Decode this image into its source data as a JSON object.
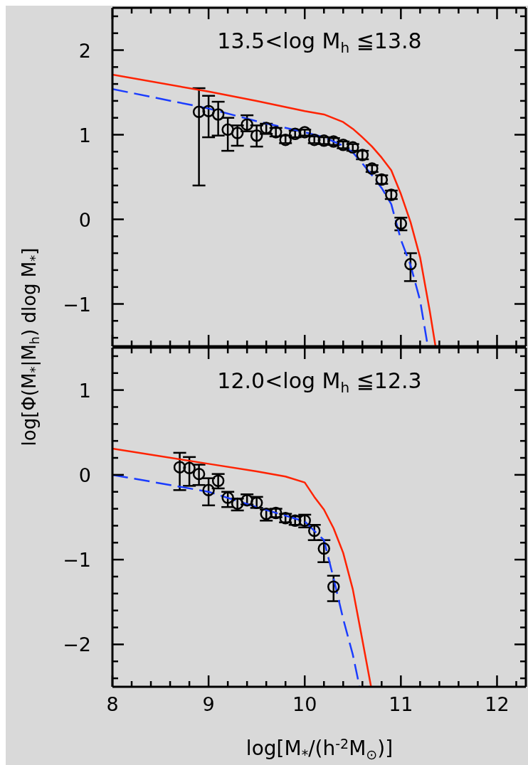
{
  "chart_data": [
    {
      "type": "scatter",
      "title": "13.5<log M$_{h}$ ≦13.8",
      "xlim": [
        8,
        12.3
      ],
      "ylim": [
        -1.5,
        2.5
      ],
      "xticks": [
        8,
        {
          "value": 8.2,
          "label": null
        },
        {
          "value": 8.4,
          "label": null
        },
        {
          "value": 8.6,
          "label": null
        },
        {
          "value": 8.8,
          "label": null
        },
        9,
        {
          "value": 9.2,
          "label": null
        },
        {
          "value": 9.4,
          "label": null
        },
        {
          "value": 9.6,
          "label": null
        },
        {
          "value": 9.8,
          "label": null
        },
        10,
        {
          "value": 10.2,
          "label": null
        },
        {
          "value": 10.4,
          "label": null
        },
        {
          "value": 10.6,
          "label": null
        },
        {
          "value": 10.8,
          "label": null
        },
        11,
        {
          "value": 11.2,
          "label": null
        },
        {
          "value": 11.4,
          "label": null
        },
        {
          "value": 11.6,
          "label": null
        },
        {
          "value": 11.8,
          "label": null
        },
        12,
        {
          "value": 12.2,
          "label": null
        }
      ],
      "yticks": [
        {
          "value": -1.4,
          "label": null
        },
        {
          "value": -1.2,
          "label": null
        },
        -1,
        {
          "value": -0.8,
          "label": null
        },
        {
          "value": -0.6,
          "label": null
        },
        {
          "value": -0.4,
          "label": null
        },
        {
          "value": -0.2,
          "label": null
        },
        0,
        {
          "value": 0.2,
          "label": null
        },
        {
          "value": 0.4,
          "label": null
        },
        {
          "value": 0.6,
          "label": null
        },
        {
          "value": 0.8,
          "label": null
        },
        1,
        {
          "value": 1.2,
          "label": null
        },
        {
          "value": 1.4,
          "label": null
        },
        {
          "value": 1.6,
          "label": null
        },
        {
          "value": 1.8,
          "label": null
        },
        2,
        {
          "value": 2.2,
          "label": null
        },
        {
          "value": 2.4,
          "label": null
        }
      ],
      "tick_labels": "y",
      "series": [
        {
          "color": "#000000",
          "marker": "circle",
          "x": [
            8.9,
            9.0,
            9.1,
            9.2,
            9.3,
            9.4,
            9.5,
            9.6,
            9.7,
            9.8,
            9.9,
            10.0,
            10.1,
            10.2,
            10.3,
            10.4,
            10.5,
            10.6,
            10.7,
            10.8,
            10.9,
            11.0,
            11.1
          ],
          "values": [
            1.27,
            1.28,
            1.24,
            1.06,
            1.02,
            1.12,
            0.99,
            1.08,
            1.03,
            0.94,
            1.01,
            1.03,
            0.94,
            0.93,
            0.92,
            0.88,
            0.85,
            0.76,
            0.6,
            0.47,
            0.29,
            -0.05,
            -0.53
          ],
          "errors": [
            [
              0.4,
              1.55
            ],
            [
              0.97,
              1.46
            ],
            [
              0.99,
              1.39
            ],
            [
              0.81,
              1.2
            ],
            [
              0.87,
              1.11
            ],
            [
              1.04,
              1.23
            ],
            [
              0.86,
              1.11
            ],
            [
              1.01,
              1.13
            ],
            [
              0.98,
              1.08
            ],
            [
              0.9,
              0.99
            ],
            [
              0.97,
              1.05
            ],
            [
              0.99,
              1.06
            ],
            0.04,
            0.04,
            0.04,
            0.04,
            0.04,
            0.05,
            0.04,
            0.05,
            0.05,
            [
              -0.13,
              0.02
            ],
            [
              -0.73,
              -0.4
            ]
          ]
        },
        {
          "type": "line",
          "color": "#ff2200",
          "line_style": "solid",
          "marker": "none",
          "x": [
            8,
            9,
            9.5,
            10,
            10.2,
            10.4,
            10.5,
            10.6,
            10.7,
            10.8,
            10.9,
            11.0,
            11.1,
            11.2,
            11.3,
            11.36
          ],
          "values": [
            1.71,
            1.51,
            1.4,
            1.28,
            1.24,
            1.15,
            1.07,
            0.97,
            0.86,
            0.73,
            0.58,
            0.3,
            -0.03,
            -0.45,
            -1.08,
            -1.5
          ]
        },
        {
          "type": "line",
          "color": "#1a3cff",
          "line_style": "dashed",
          "marker": "none",
          "x": [
            8,
            9,
            9.5,
            10,
            10.2,
            10.4,
            10.5,
            10.6,
            10.7,
            10.8,
            10.9,
            11.0,
            11.1,
            11.2,
            11.28
          ],
          "values": [
            1.54,
            1.31,
            1.16,
            1.03,
            0.97,
            0.87,
            0.79,
            0.66,
            0.52,
            0.37,
            0.18,
            -0.24,
            -0.54,
            -0.96,
            -1.5
          ]
        }
      ]
    },
    {
      "type": "scatter",
      "title": "12.0<log M$_{h}$ ≦12.3",
      "xlabel": "log[M$_{*}$/(h$^{-2}$M$_{⊙}$)]",
      "ylabel": "log[Φ(M$_{*}$|M$_{h}$) dlog M$_{*}$]",
      "xlim": [
        8,
        12.3
      ],
      "ylim": [
        -2.5,
        1.5
      ],
      "xticks": [
        8,
        {
          "value": 8.2,
          "label": null
        },
        {
          "value": 8.4,
          "label": null
        },
        {
          "value": 8.6,
          "label": null
        },
        {
          "value": 8.8,
          "label": null
        },
        9,
        {
          "value": 9.2,
          "label": null
        },
        {
          "value": 9.4,
          "label": null
        },
        {
          "value": 9.6,
          "label": null
        },
        {
          "value": 9.8,
          "label": null
        },
        10,
        {
          "value": 10.2,
          "label": null
        },
        {
          "value": 10.4,
          "label": null
        },
        {
          "value": 10.6,
          "label": null
        },
        {
          "value": 10.8,
          "label": null
        },
        11,
        {
          "value": 11.2,
          "label": null
        },
        {
          "value": 11.4,
          "label": null
        },
        {
          "value": 11.6,
          "label": null
        },
        {
          "value": 11.8,
          "label": null
        },
        12,
        {
          "value": 12.2,
          "label": null
        }
      ],
      "yticks": [
        {
          "value": -2.4,
          "label": null
        },
        {
          "value": -2.2,
          "label": null
        },
        -2,
        {
          "value": -1.8,
          "label": null
        },
        {
          "value": -1.6,
          "label": null
        },
        {
          "value": -1.4,
          "label": null
        },
        {
          "value": -1.2,
          "label": null
        },
        -1,
        {
          "value": -0.8,
          "label": null
        },
        {
          "value": -0.6,
          "label": null
        },
        {
          "value": -0.4,
          "label": null
        },
        {
          "value": -0.2,
          "label": null
        },
        0,
        {
          "value": 0.2,
          "label": null
        },
        {
          "value": 0.4,
          "label": null
        },
        {
          "value": 0.6,
          "label": null
        },
        {
          "value": 0.8,
          "label": null
        },
        1,
        {
          "value": 1.2,
          "label": null
        },
        {
          "value": 1.4,
          "label": null
        }
      ],
      "series": [
        {
          "color": "#000000",
          "marker": "circle",
          "x": [
            8.7,
            8.8,
            8.9,
            9.0,
            9.1,
            9.2,
            9.3,
            9.4,
            9.5,
            9.6,
            9.7,
            9.8,
            9.9,
            10.0,
            10.1,
            10.2,
            10.3
          ],
          "values": [
            0.09,
            0.08,
            0.01,
            -0.18,
            -0.07,
            -0.27,
            -0.34,
            -0.3,
            -0.33,
            -0.46,
            -0.45,
            -0.51,
            -0.54,
            -0.54,
            -0.66,
            -0.87,
            -1.32
          ],
          "errors": [
            [
              -0.18,
              0.26
            ],
            [
              -0.13,
              0.21
            ],
            [
              -0.12,
              0.12
            ],
            [
              -0.36,
              -0.04
            ],
            [
              -0.16,
              0.01
            ],
            [
              -0.38,
              -0.2
            ],
            [
              -0.42,
              -0.28
            ],
            [
              -0.35,
              -0.23
            ],
            [
              -0.39,
              -0.26
            ],
            [
              -0.54,
              -0.41
            ],
            0.05,
            0.05,
            0.05,
            [
              -0.62,
              -0.47
            ],
            [
              -0.77,
              -0.59
            ],
            [
              -1.03,
              -0.77
            ],
            [
              -1.49,
              -1.19
            ]
          ]
        },
        {
          "type": "line",
          "color": "#ff2200",
          "line_style": "solid",
          "marker": "none",
          "x": [
            8,
            9,
            9.5,
            9.8,
            10,
            10.1,
            10.2,
            10.3,
            10.4,
            10.5,
            10.6,
            10.69
          ],
          "values": [
            0.31,
            0.13,
            0.04,
            -0.02,
            -0.09,
            -0.26,
            -0.41,
            -0.63,
            -0.92,
            -1.35,
            -1.95,
            -2.5
          ]
        },
        {
          "type": "line",
          "color": "#1a3cff",
          "line_style": "dashed",
          "marker": "none",
          "x": [
            8,
            9,
            9.5,
            10,
            10.2,
            10.3,
            10.4,
            10.5,
            10.57
          ],
          "values": [
            0.0,
            -0.2,
            -0.38,
            -0.55,
            -0.77,
            -1.22,
            -1.7,
            -2.12,
            -2.5
          ]
        }
      ]
    }
  ]
}
